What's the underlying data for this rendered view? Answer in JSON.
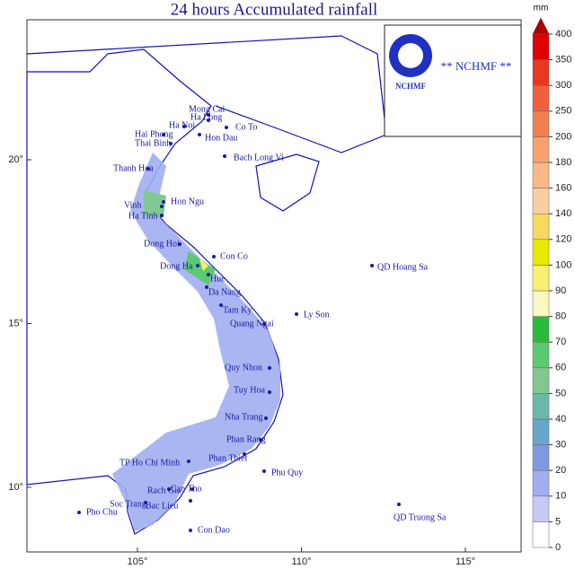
{
  "title": "24 hours Accumulated rainfall",
  "logo": {
    "emblem": "NCHMF",
    "text": "** NCHMF **"
  },
  "legend": {
    "unit": "mm",
    "levels": [
      0,
      5,
      10,
      20,
      30,
      40,
      50,
      60,
      70,
      80,
      90,
      100,
      120,
      140,
      160,
      180,
      200,
      250,
      300,
      350,
      400
    ],
    "colors": [
      "#ffffff",
      "#c8c8f8",
      "#a0aef0",
      "#7f98e2",
      "#6aa6cc",
      "#6cb8a8",
      "#80c890",
      "#5cc870",
      "#2cba3c",
      "#f8f8c0",
      "#f8f070",
      "#e8e800",
      "#f8d860",
      "#f8d0a0",
      "#f8b888",
      "#f8a070",
      "#f08050",
      "#f06040",
      "#e83820",
      "#e00000"
    ]
  },
  "axes": {
    "lon_ticks": [
      {
        "value": 105,
        "label": "105°"
      },
      {
        "value": 110,
        "label": "110°"
      },
      {
        "value": 115,
        "label": "115°"
      }
    ],
    "lat_ticks": [
      {
        "value": 20,
        "label": "20°"
      },
      {
        "value": 15,
        "label": "15°"
      },
      {
        "value": 10,
        "label": "10°"
      }
    ]
  },
  "places": [
    "Mong Cai",
    "Ha Long",
    "Co To",
    "Ha Noi",
    "Hai Phong",
    "Hon Dau",
    "Thai Binh",
    "Bach Long Vi",
    "Thanh Hoa",
    "Hon Ngu",
    "Vinh",
    "Ha Tinh",
    "Dong Hoi",
    "Con Co",
    "Dong Ha",
    "Hue",
    "Da Nang",
    "QD Hoang Sa",
    "Tam Ky",
    "Ly Son",
    "Quang Ngai",
    "Quy Nhon",
    "Tuy Hoa",
    "Nha Trang",
    "Phan Rang",
    "Phan Thiet",
    "Phu Quy",
    "TP Ho Chi Minh",
    "Rach Gia",
    "Can Tho",
    "Soc Trang",
    "Bac Lieu",
    "Pho Chu",
    "Con Dao",
    "QD Truong Sa"
  ]
}
